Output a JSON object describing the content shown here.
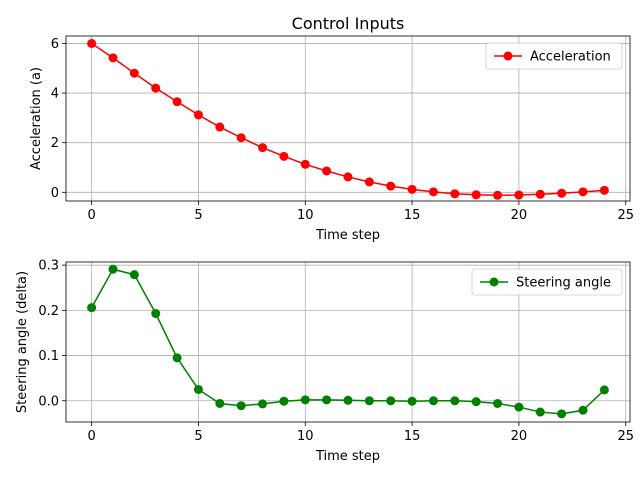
{
  "chart_data": [
    {
      "type": "line",
      "title": "Control Inputs",
      "xlabel": "Time step",
      "ylabel": "Acceleration (a)",
      "xlim": [
        -1.2,
        25.2
      ],
      "ylim": [
        -0.35,
        6.3
      ],
      "xticks": [
        "0",
        "5",
        "10",
        "15",
        "20",
        "25"
      ],
      "yticks": [
        "0",
        "2",
        "4",
        "6"
      ],
      "grid": true,
      "legend_position": "top-right",
      "series": [
        {
          "name": "Acceleration",
          "color": "#ff0000",
          "marker": "circle",
          "x": [
            0,
            1,
            2,
            3,
            4,
            5,
            6,
            7,
            8,
            9,
            10,
            11,
            12,
            13,
            14,
            15,
            16,
            17,
            18,
            19,
            20,
            21,
            22,
            23,
            24
          ],
          "y": [
            6.0,
            5.42,
            4.8,
            4.2,
            3.65,
            3.12,
            2.63,
            2.2,
            1.8,
            1.45,
            1.13,
            0.86,
            0.62,
            0.42,
            0.25,
            0.12,
            0.02,
            -0.06,
            -0.1,
            -0.12,
            -0.11,
            -0.08,
            -0.04,
            0.02,
            0.08
          ]
        }
      ]
    },
    {
      "type": "line",
      "title": "",
      "xlabel": "Time step",
      "ylabel": "Steering angle (delta)",
      "xlim": [
        -1.2,
        25.2
      ],
      "ylim": [
        -0.047,
        0.307
      ],
      "xticks": [
        "0",
        "5",
        "10",
        "15",
        "20",
        "25"
      ],
      "yticks": [
        "0.0",
        "0.1",
        "0.2",
        "0.3"
      ],
      "grid": true,
      "legend_position": "top-right",
      "series": [
        {
          "name": "Steering angle",
          "color": "#008000",
          "marker": "circle",
          "x": [
            0,
            1,
            2,
            3,
            4,
            5,
            6,
            7,
            8,
            9,
            10,
            11,
            12,
            13,
            14,
            15,
            16,
            17,
            18,
            19,
            20,
            21,
            22,
            23,
            24
          ],
          "y": [
            0.206,
            0.291,
            0.279,
            0.193,
            0.095,
            0.025,
            -0.006,
            -0.011,
            -0.007,
            -0.001,
            0.002,
            0.002,
            0.001,
            0.0,
            0.0,
            -0.001,
            0.0,
            0.0,
            -0.002,
            -0.006,
            -0.014,
            -0.025,
            -0.029,
            -0.021,
            0.024
          ]
        }
      ]
    }
  ]
}
